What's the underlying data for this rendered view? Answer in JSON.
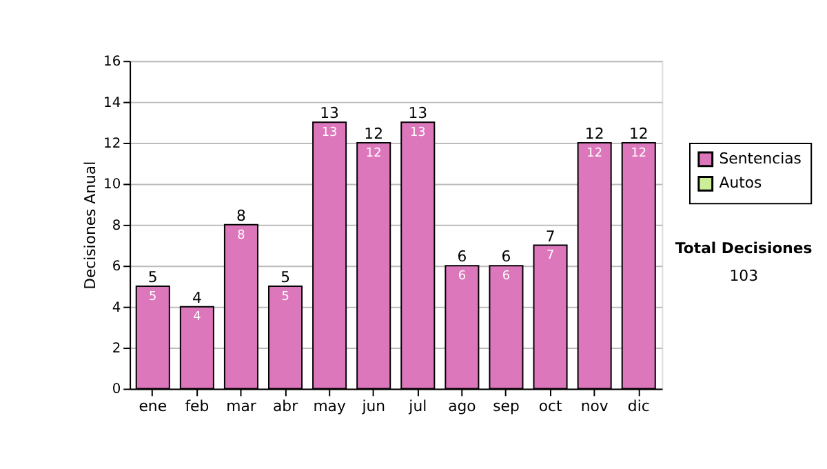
{
  "chart_data": {
    "type": "bar",
    "ylabel": "Decisiones Anual",
    "categories": [
      "ene",
      "feb",
      "mar",
      "abr",
      "may",
      "jun",
      "jul",
      "ago",
      "sep",
      "oct",
      "nov",
      "dic"
    ],
    "series": [
      {
        "name": "Sentencias",
        "color": "#dd77bb",
        "values": [
          5,
          4,
          8,
          5,
          13,
          12,
          13,
          6,
          6,
          7,
          12,
          12
        ]
      },
      {
        "name": "Autos",
        "color": "#ccee99",
        "values": [
          null,
          null,
          null,
          null,
          null,
          null,
          null,
          null,
          null,
          null,
          null,
          null
        ]
      }
    ],
    "data_labels": true,
    "totals": [
      "5",
      "4",
      "8",
      "5",
      "13",
      "12",
      "13",
      "6",
      "6",
      "7",
      "12",
      "12"
    ],
    "ylim": [
      0,
      16
    ],
    "yticks": [
      0,
      2,
      4,
      6,
      8,
      10,
      12,
      14,
      16
    ],
    "grid": "y",
    "legend": "right",
    "annotations": [
      "Total Decisiones",
      "103"
    ]
  }
}
